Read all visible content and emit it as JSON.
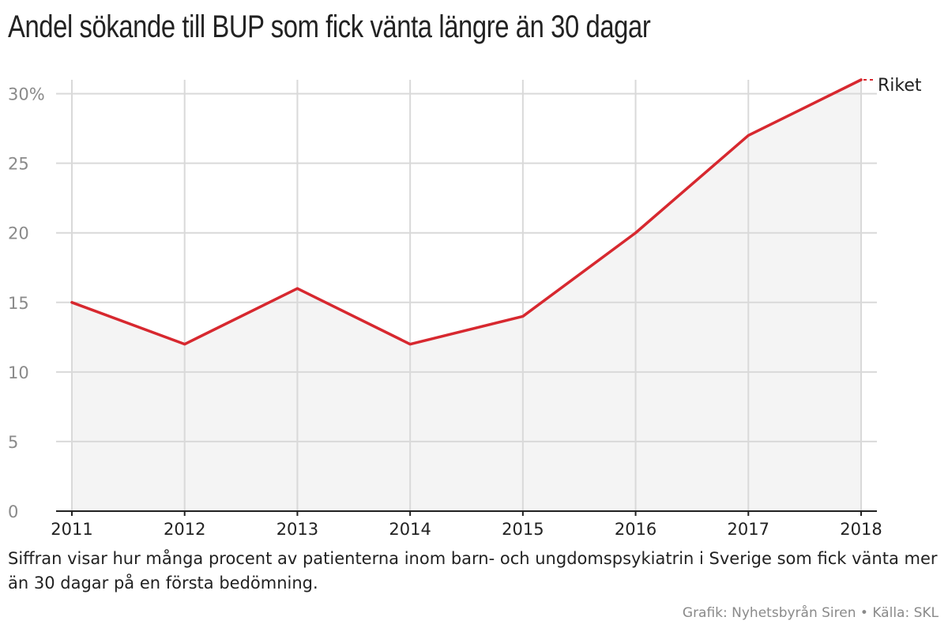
{
  "title": "Andel sökande till BUP som fick vänta längre än 30 dagar",
  "description": "Siffran visar hur många procent av patienterna inom barn- och ungdomspsykiatrin i Sverige som fick vänta mer än 30 dagar på en första bedömning.",
  "credit": "Grafik: Nyhetsbyrån Siren • Källa: SKL",
  "colors": {
    "line": "#d7282f",
    "area": "#f4f4f4",
    "grid": "#d9d9d9",
    "axis": "#222222"
  },
  "chart_data": {
    "type": "area",
    "title": "Andel sökande till BUP som fick vänta längre än 30 dagar",
    "x": [
      2011,
      2012,
      2013,
      2014,
      2015,
      2016,
      2017,
      2018
    ],
    "series": [
      {
        "name": "Riket",
        "values": [
          15,
          12,
          16,
          12,
          14,
          20,
          27,
          31
        ]
      }
    ],
    "ylim": [
      0,
      31
    ],
    "yticks": [
      0,
      5,
      10,
      15,
      20,
      25,
      30
    ],
    "ytick_labels": [
      "0",
      "5",
      "10",
      "15",
      "20",
      "25",
      "30%"
    ],
    "xtick_labels": [
      "2011",
      "2012",
      "2013",
      "2014",
      "2015",
      "2016",
      "2017",
      "2018"
    ],
    "xlabel": "",
    "ylabel": "",
    "grid": true,
    "legend": "inline-right"
  }
}
